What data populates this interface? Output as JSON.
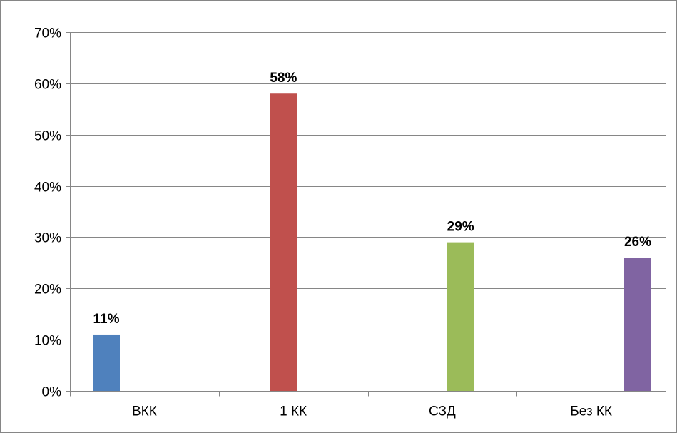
{
  "chart_data": {
    "type": "bar",
    "categories": [
      "ВКК",
      "1 КК",
      "СЗД",
      "Без КК"
    ],
    "values": [
      0.11,
      0.58,
      0.29,
      0.26
    ],
    "data_labels": [
      "11%",
      "58%",
      "29%",
      "26%"
    ],
    "colors": [
      "#4F81BD",
      "#C0504D",
      "#9BBB59",
      "#8064A2"
    ],
    "y_ticks": [
      0,
      0.1,
      0.2,
      0.3,
      0.4,
      0.5,
      0.6,
      0.7
    ],
    "y_tick_labels": [
      "0%",
      "10%",
      "20%",
      "30%",
      "40%",
      "50%",
      "60%",
      "70%"
    ],
    "ylim": [
      0,
      0.7
    ],
    "grid": true,
    "legend": "none",
    "title": "",
    "xlabel": "",
    "ylabel": ""
  }
}
